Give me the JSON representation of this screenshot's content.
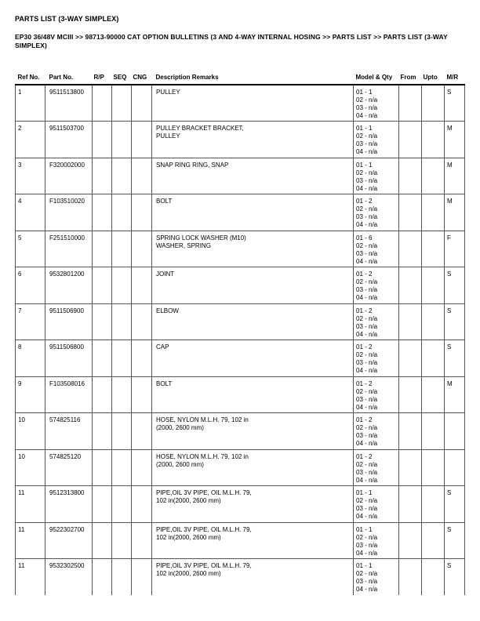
{
  "header": {
    "title": "PARTS LIST (3-WAY SIMPLEX)",
    "breadcrumb_lines": [
      "EP30 36/48V MCIII >> 98713-90000 CAT OPTION BULLETINS (3 AND 4-WAY INTERNAL HOSING >> PARTS LIST >> PARTS LIST (3-WAY",
      "SIMPLEX)"
    ]
  },
  "table": {
    "columns": [
      "Ref No.",
      "Part No.",
      "R/P",
      "SEQ",
      "CNG",
      "Description Remarks",
      "Model & Qty",
      "From",
      "Upto",
      "M/R"
    ],
    "rows": [
      {
        "ref": "1",
        "part": "9511513800",
        "rp": "",
        "seq": "",
        "cng": "",
        "desc": [
          "PULLEY"
        ],
        "model_qty": [
          "01 - 1",
          "02 - n/a",
          "03 - n/a",
          "04 - n/a"
        ],
        "from": "",
        "upto": "",
        "mr": "S"
      },
      {
        "ref": "2",
        "part": "9511503700",
        "rp": "",
        "seq": "",
        "cng": "",
        "desc": [
          "PULLEY BRACKET BRACKET,",
          "PULLEY"
        ],
        "model_qty": [
          "01 - 1",
          "02 - n/a",
          "03 - n/a",
          "04 - n/a"
        ],
        "from": "",
        "upto": "",
        "mr": "M"
      },
      {
        "ref": "3",
        "part": "F320002000",
        "rp": "",
        "seq": "",
        "cng": "",
        "desc": [
          "SNAP RING RING, SNAP"
        ],
        "model_qty": [
          "01 - 1",
          "02 - n/a",
          "03 - n/a",
          "04 - n/a"
        ],
        "from": "",
        "upto": "",
        "mr": "M"
      },
      {
        "ref": "4",
        "part": "F103510020",
        "rp": "",
        "seq": "",
        "cng": "",
        "desc": [
          "BOLT"
        ],
        "model_qty": [
          "01 - 2",
          "02 - n/a",
          "03 - n/a",
          "04 - n/a"
        ],
        "from": "",
        "upto": "",
        "mr": "M"
      },
      {
        "ref": "5",
        "part": "F251510000",
        "rp": "",
        "seq": "",
        "cng": "",
        "desc": [
          "SPRING LOCK WASHER (M10)",
          "WASHER, SPRING"
        ],
        "model_qty": [
          "01 - 6",
          "02 - n/a",
          "03 - n/a",
          "04 - n/a"
        ],
        "from": "",
        "upto": "",
        "mr": "F"
      },
      {
        "ref": "6",
        "part": "9532801200",
        "rp": "",
        "seq": "",
        "cng": "",
        "desc": [
          "JOINT"
        ],
        "model_qty": [
          "01 - 2",
          "02 - n/a",
          "03 - n/a",
          "04 - n/a"
        ],
        "from": "",
        "upto": "",
        "mr": "S"
      },
      {
        "ref": "7",
        "part": "9511506900",
        "rp": "",
        "seq": "",
        "cng": "",
        "desc": [
          "ELBOW"
        ],
        "model_qty": [
          "01 - 2",
          "02 - n/a",
          "03 - n/a",
          "04 - n/a"
        ],
        "from": "",
        "upto": "",
        "mr": "S"
      },
      {
        "ref": "8",
        "part": "9511506800",
        "rp": "",
        "seq": "",
        "cng": "",
        "desc": [
          "CAP"
        ],
        "model_qty": [
          "01 - 2",
          "02 - n/a",
          "03 - n/a",
          "04 - n/a"
        ],
        "from": "",
        "upto": "",
        "mr": "S"
      },
      {
        "ref": "9",
        "part": "F103508016",
        "rp": "",
        "seq": "",
        "cng": "",
        "desc": [
          "BOLT"
        ],
        "model_qty": [
          "01 - 2",
          "02 - n/a",
          "03 - n/a",
          "04 - n/a"
        ],
        "from": "",
        "upto": "",
        "mr": "M"
      },
      {
        "ref": "10",
        "part": "574825116",
        "rp": "",
        "seq": "",
        "cng": "",
        "desc": [
          "HOSE, NYLON M.L.H. 79, 102 in",
          "(2000, 2600 mm)"
        ],
        "model_qty": [
          "01 - 2",
          "02 - n/a",
          "03 - n/a",
          "04 - n/a"
        ],
        "from": "",
        "upto": "",
        "mr": ""
      },
      {
        "ref": "10",
        "part": "574825120",
        "rp": "",
        "seq": "",
        "cng": "",
        "desc": [
          "HOSE, NYLON M.L.H. 79, 102 in",
          "(2000, 2600 mm)"
        ],
        "model_qty": [
          "01 - 2",
          "02 - n/a",
          "03 - n/a",
          "04 - n/a"
        ],
        "from": "",
        "upto": "",
        "mr": ""
      },
      {
        "ref": "11",
        "part": "9512313800",
        "rp": "",
        "seq": "",
        "cng": "",
        "desc": [
          "PIPE,OIL 3V PIPE, OIL M.L.H. 79,",
          "102 in(2000, 2600 mm)"
        ],
        "model_qty": [
          "01 - 1",
          "02 - n/a",
          "03 - n/a",
          "04 - n/a"
        ],
        "from": "",
        "upto": "",
        "mr": "S"
      },
      {
        "ref": "11",
        "part": "9522302700",
        "rp": "",
        "seq": "",
        "cng": "",
        "desc": [
          "PIPE,OIL 3V PIPE, OIL M.L.H. 79,",
          "102 in(2000, 2600 mm)"
        ],
        "model_qty": [
          "01 - 1",
          "02 - n/a",
          "03 - n/a",
          "04 - n/a"
        ],
        "from": "",
        "upto": "",
        "mr": "S"
      },
      {
        "ref": "11",
        "part": "9532302500",
        "rp": "",
        "seq": "",
        "cng": "",
        "desc": [
          "PIPE,OIL 3V PIPE, OIL M.L.H. 79,",
          "102 in(2000, 2600 mm)"
        ],
        "model_qty": [
          "01 - 1",
          "02 - n/a",
          "03 - n/a",
          "04 - n/a"
        ],
        "from": "",
        "upto": "",
        "mr": "S"
      }
    ]
  },
  "colors": {
    "background": "#ffffff",
    "text": "#000000",
    "table_border": "#555555",
    "header_rule": "#000000"
  }
}
